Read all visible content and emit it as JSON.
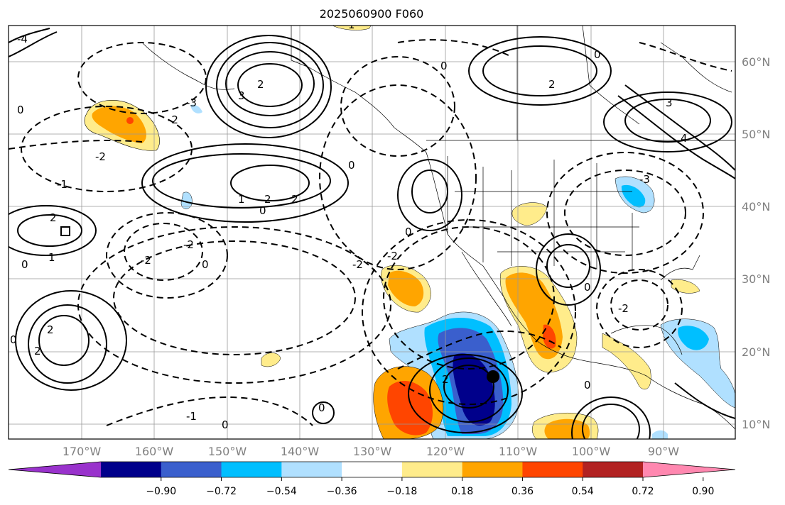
{
  "title": "2025060900 F060",
  "lat_labels": [
    "60°N",
    "50°N",
    "40°N",
    "30°N",
    "20°N",
    "10°N"
  ],
  "lon_labels": [
    "170°W",
    "160°W",
    "150°W",
    "140°W",
    "130°W",
    "120°W",
    "110°W",
    "100°W",
    "90°W"
  ],
  "colorbar": {
    "colors": [
      "#9932cc",
      "#00008b",
      "#3a5fcd",
      "#00bfff",
      "#b0e0ff",
      "#ffffff",
      "#ffec8b",
      "#ffa500",
      "#ff4500",
      "#b22222",
      "#ff88b0"
    ],
    "tick_labels": [
      "−0.90",
      "−0.72",
      "−0.54",
      "−0.36",
      "−0.18",
      "0.18",
      "0.36",
      "0.54",
      "0.72",
      "0.90"
    ]
  },
  "contour_labels": [
    "0",
    "1",
    "2",
    "3",
    "4",
    "-1",
    "-2",
    "-3",
    "-4"
  ],
  "marker": "storm-center-dot"
}
